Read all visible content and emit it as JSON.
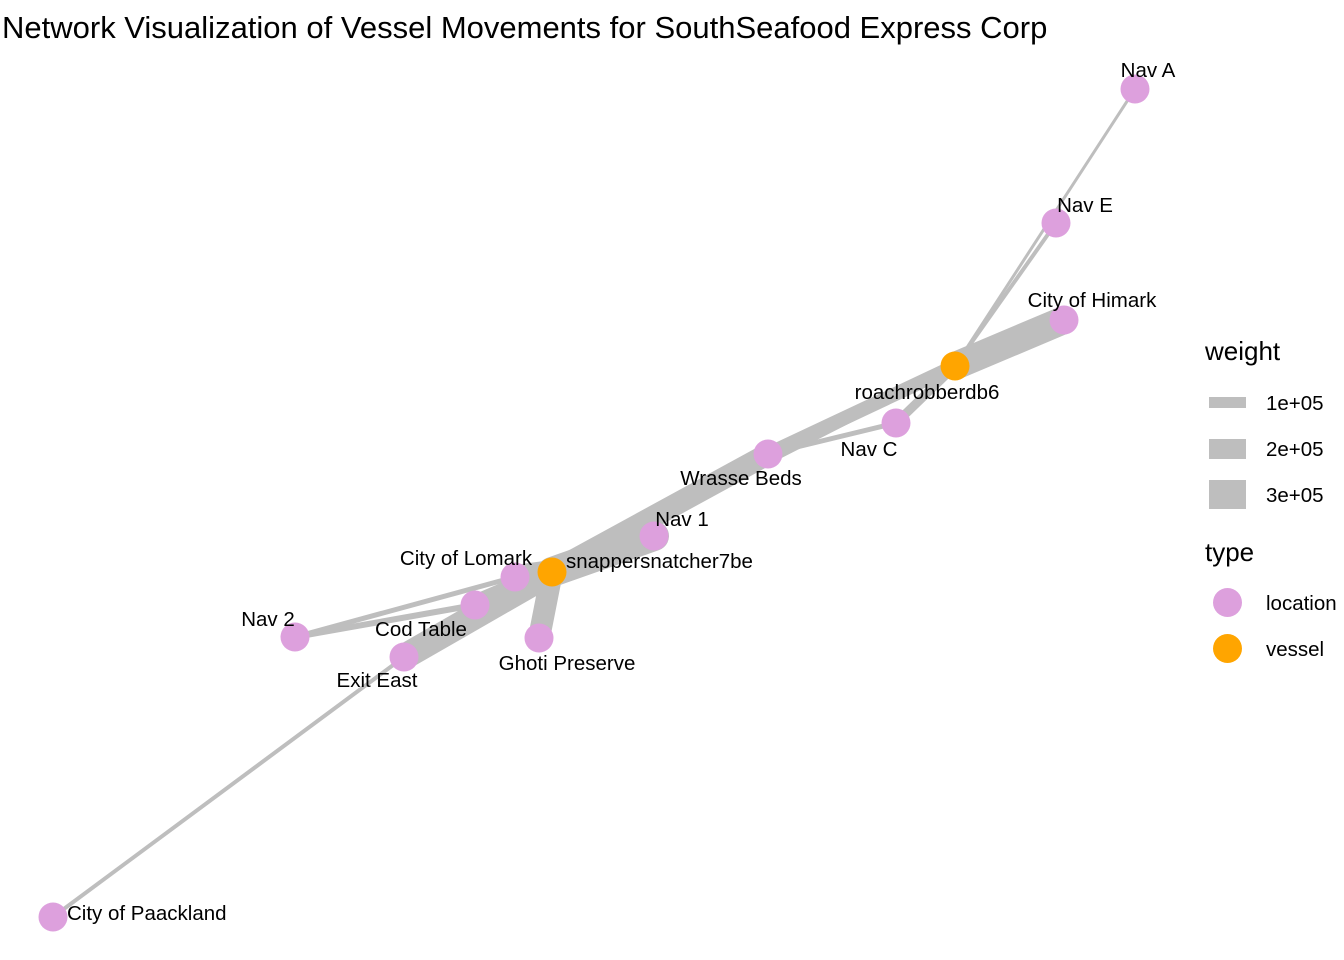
{
  "title": "Network Visualization of Vessel Movements for SouthSeafood Express Corp",
  "colors": {
    "edge": "#bebebe",
    "location": "#dda0dd",
    "vessel": "#ffa500"
  },
  "legend": {
    "weight": {
      "title": "weight",
      "entries": [
        {
          "label": "1e+05",
          "value": 100000
        },
        {
          "label": "2e+05",
          "value": 200000
        },
        {
          "label": "3e+05",
          "value": 300000
        }
      ]
    },
    "type": {
      "title": "type",
      "entries": [
        {
          "label": "location",
          "key": "location"
        },
        {
          "label": "vessel",
          "key": "vessel"
        }
      ]
    }
  },
  "nodes": [
    {
      "id": "nav-a",
      "label": "Nav A",
      "type": "location"
    },
    {
      "id": "nav-e",
      "label": "Nav E",
      "type": "location"
    },
    {
      "id": "city-himark",
      "label": "City of Himark",
      "type": "location"
    },
    {
      "id": "roachrobber",
      "label": "roachrobberdb6",
      "type": "vessel"
    },
    {
      "id": "nav-c",
      "label": "Nav C",
      "type": "location"
    },
    {
      "id": "wrasse-beds",
      "label": "Wrasse Beds",
      "type": "location"
    },
    {
      "id": "nav-1",
      "label": "Nav 1",
      "type": "location"
    },
    {
      "id": "snapper",
      "label": "snappersnatcher7be",
      "type": "vessel"
    },
    {
      "id": "city-lomark",
      "label": "City of Lomark",
      "type": "location"
    },
    {
      "id": "cod-table",
      "label": "Cod Table",
      "type": "location"
    },
    {
      "id": "nav-2",
      "label": "Nav 2",
      "type": "location"
    },
    {
      "id": "ghoti",
      "label": "Ghoti Preserve",
      "type": "location"
    },
    {
      "id": "exit-east",
      "label": "Exit East",
      "type": "location"
    },
    {
      "id": "city-paackland",
      "label": "City of Paackland",
      "type": "location"
    }
  ]
}
